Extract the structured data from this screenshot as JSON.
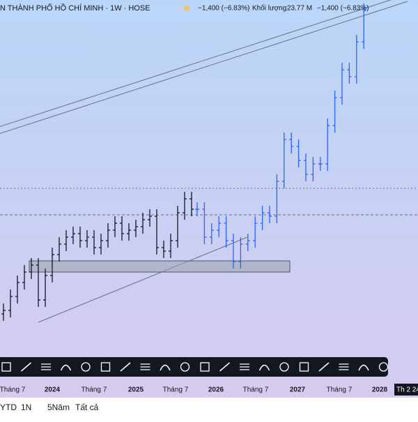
{
  "header": {
    "symbol": "N THÀNH PHỐ HỒ CHÍ MINH · 1W · HOSE",
    "change": "−1,400 (−6.83%)",
    "volume_label": "Khối lượng",
    "volume": "23.77 M",
    "volume_change": "−1,400 (−6.83%)"
  },
  "chart_data": {
    "type": "ohlc",
    "ylim": [
      0,
      20400
    ],
    "time_labels": [
      "Tháng 7",
      "2024",
      "Tháng 7",
      "2025",
      "Tháng 7",
      "2026",
      "Tháng 7",
      "2027",
      "Tháng 7",
      "2028"
    ],
    "cursor_time": "Th 2 24",
    "series": [
      {
        "color": "#131722",
        "open": [
          2400,
          2600,
          3400,
          4200,
          4800,
          5200,
          3200,
          4600,
          5800,
          6400,
          6800,
          7000,
          6600,
          6800,
          6200,
          6600,
          7200,
          7600,
          7000,
          7200,
          7400,
          7800,
          8000,
          6200,
          6000,
          6600,
          8200,
          9000
        ],
        "high": [
          3000,
          3800,
          4600,
          5200,
          5600,
          5600,
          5000,
          6200,
          6800,
          7200,
          7400,
          7400,
          7200,
          7200,
          7000,
          7600,
          8000,
          8000,
          7600,
          7800,
          8200,
          8400,
          8400,
          6600,
          7000,
          8600,
          9400,
          9400
        ],
        "low": [
          2000,
          2200,
          3000,
          3800,
          4400,
          2800,
          2800,
          4200,
          5400,
          6000,
          6400,
          6200,
          6200,
          5800,
          5800,
          6200,
          6800,
          6600,
          6600,
          6800,
          7000,
          7400,
          5800,
          5600,
          5600,
          6200,
          7800,
          8000
        ],
        "close": [
          2600,
          3400,
          4200,
          4800,
          5200,
          3200,
          4600,
          5800,
          6400,
          6800,
          7000,
          6600,
          6800,
          6200,
          6600,
          7200,
          7600,
          7000,
          7200,
          7400,
          7800,
          8000,
          6200,
          6000,
          6600,
          8200,
          9000,
          8400
        ]
      },
      {
        "color": "#2962ff",
        "open": [
          8400,
          8400,
          6800,
          7200,
          7600,
          6600,
          5400,
          6400,
          6600,
          7600,
          8200,
          8000,
          10000,
          12400,
          12000,
          11200,
          10400,
          11000,
          11000,
          13200,
          14800,
          16400,
          16000,
          18000
        ],
        "high": [
          8800,
          8800,
          7600,
          8000,
          8000,
          7000,
          6800,
          7000,
          8000,
          8600,
          8600,
          10400,
          12800,
          12800,
          12400,
          11600,
          11400,
          11400,
          13600,
          15200,
          16800,
          16800,
          18400,
          20200
        ],
        "low": [
          8000,
          6400,
          6400,
          6800,
          6200,
          5000,
          5000,
          6000,
          6200,
          7200,
          7600,
          7600,
          9600,
          11600,
          10800,
          10000,
          10000,
          10600,
          10600,
          12800,
          14400,
          15600,
          15600,
          17600
        ],
        "close": [
          8400,
          6800,
          7200,
          7600,
          6600,
          5400,
          6400,
          6600,
          7600,
          8200,
          8000,
          10000,
          12400,
          12000,
          11200,
          10400,
          11000,
          11000,
          13200,
          14800,
          16400,
          16000,
          18000,
          19800
        ]
      }
    ]
  },
  "range_buttons": [
    "YTD",
    "1N",
    "5Năm",
    "Tất cả"
  ]
}
